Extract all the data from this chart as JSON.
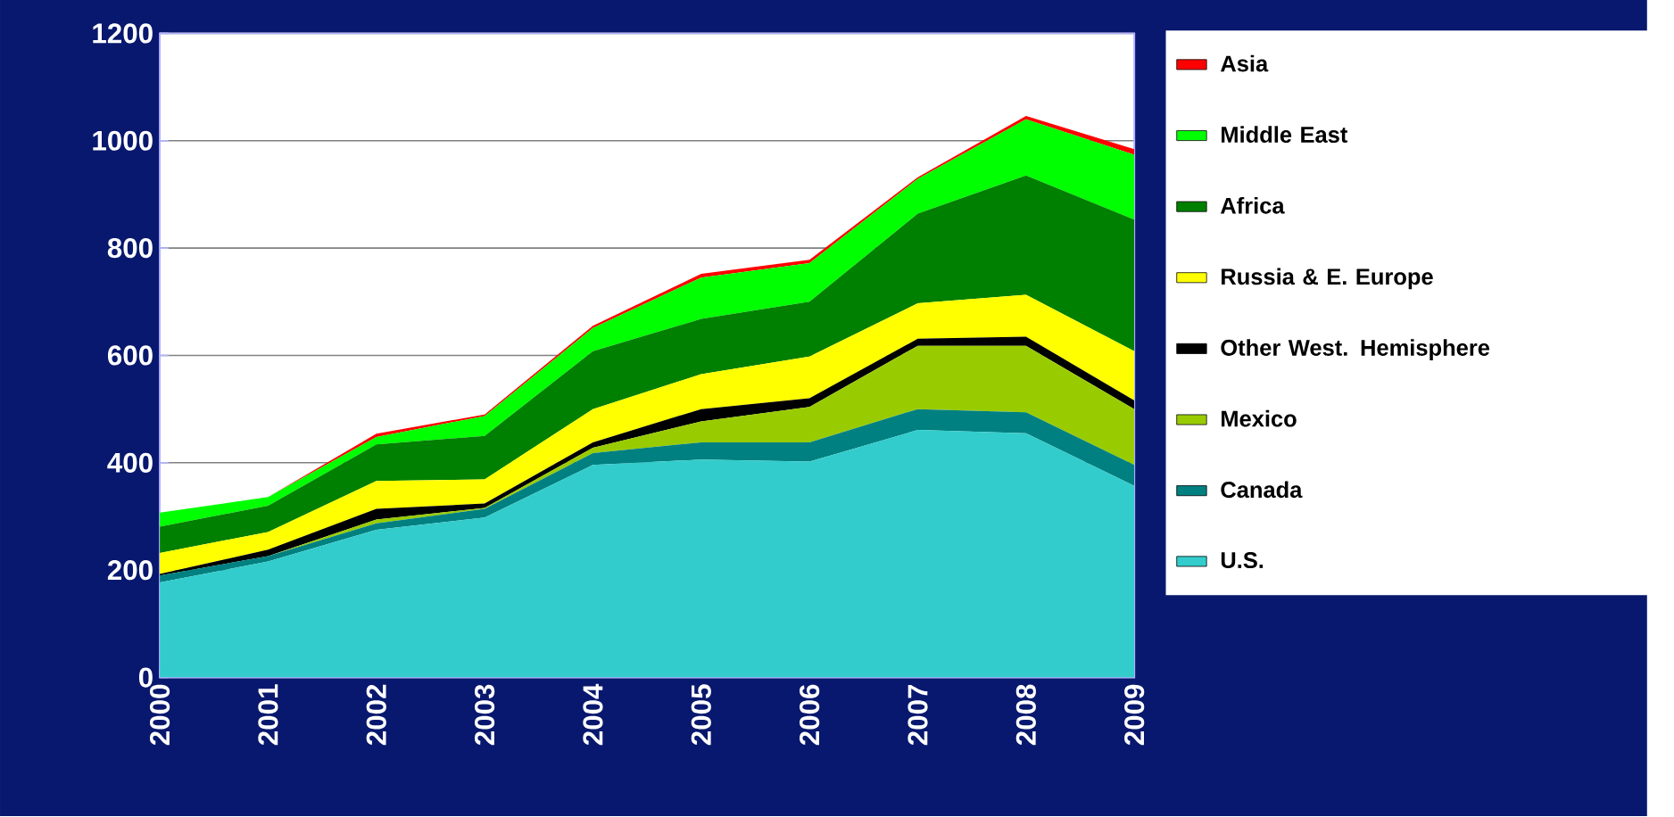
{
  "chart_data": {
    "type": "area",
    "stacked": true,
    "categories": [
      "2000",
      "2001",
      "2002",
      "2003",
      "2004",
      "2005",
      "2006",
      "2007",
      "2008",
      "2009"
    ],
    "ylim": [
      0,
      1200
    ],
    "yticks": [
      0,
      200,
      400,
      600,
      800,
      1000,
      1200
    ],
    "grid": "y",
    "legend": "right",
    "series": [
      {
        "name": "U.S.",
        "color": "#33cccc",
        "values": [
          177,
          216,
          275,
          298,
          396,
          406,
          402,
          461,
          455,
          357
        ]
      },
      {
        "name": "Canada",
        "color": "#008080",
        "values": [
          13,
          10,
          12,
          16,
          22,
          32,
          36,
          39,
          39,
          39
        ]
      },
      {
        "name": "Mexico",
        "color": "#99cc00",
        "values": [
          0,
          0,
          7,
          2,
          10,
          39,
          66,
          118,
          124,
          104
        ]
      },
      {
        "name": "Other West. Hemisphere",
        "color": "#000000",
        "values": [
          3,
          12,
          20,
          8,
          10,
          23,
          16,
          13,
          17,
          16
        ]
      },
      {
        "name": "Russia & E. Europe",
        "color": "#ffff00",
        "values": [
          39,
          33,
          52,
          45,
          62,
          65,
          78,
          66,
          78,
          92
        ]
      },
      {
        "name": "Africa",
        "color": "#008000",
        "values": [
          49,
          49,
          68,
          81,
          108,
          103,
          102,
          167,
          222,
          245
        ]
      },
      {
        "name": "Middle East",
        "color": "#00ff00",
        "values": [
          26,
          16,
          14,
          37,
          43,
          77,
          72,
          65,
          105,
          121
        ]
      },
      {
        "name": "Asia",
        "color": "#ff0000",
        "values": [
          0,
          0,
          6,
          3,
          4,
          7,
          6,
          3,
          6,
          10
        ]
      }
    ]
  }
}
